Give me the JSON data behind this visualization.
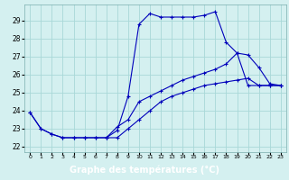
{
  "title": "Graphe des températures (°C)",
  "background_color": "#d4f0f0",
  "grid_color": "#a8d8d8",
  "line_color": "#0000bb",
  "xlabel_bg": "#0000aa",
  "xlim": [
    -0.5,
    23.5
  ],
  "ylim": [
    21.7,
    29.9
  ],
  "yticks": [
    22,
    23,
    24,
    25,
    26,
    27,
    28,
    29
  ],
  "xticks": [
    0,
    1,
    2,
    3,
    4,
    5,
    6,
    7,
    8,
    9,
    10,
    11,
    12,
    13,
    14,
    15,
    16,
    17,
    18,
    19,
    20,
    21,
    22,
    23
  ],
  "curve1_x": [
    0,
    1,
    2,
    3,
    4,
    5,
    6,
    7,
    8,
    9,
    10,
    11,
    12,
    13,
    14,
    15,
    16,
    17,
    18,
    19,
    20,
    21,
    22,
    23
  ],
  "curve1_y": [
    23.9,
    23.0,
    22.7,
    22.5,
    22.5,
    22.5,
    22.5,
    22.5,
    22.5,
    23.0,
    23.5,
    24.0,
    24.5,
    24.8,
    25.0,
    25.2,
    25.4,
    25.5,
    25.6,
    25.7,
    25.8,
    25.4,
    25.4,
    25.4
  ],
  "curve2_x": [
    0,
    1,
    2,
    3,
    4,
    5,
    6,
    7,
    8,
    9,
    10,
    11,
    12,
    13,
    14,
    15,
    16,
    17,
    18,
    19,
    20,
    21,
    22,
    23
  ],
  "curve2_y": [
    23.9,
    23.0,
    22.7,
    22.5,
    22.5,
    22.5,
    22.5,
    22.5,
    22.9,
    24.8,
    28.8,
    29.4,
    29.2,
    29.2,
    29.2,
    29.2,
    29.3,
    29.5,
    27.8,
    27.2,
    25.4,
    25.4,
    25.4,
    25.4
  ],
  "curve3_x": [
    7,
    8,
    9,
    10,
    11,
    12,
    13,
    14,
    15,
    16,
    17,
    18,
    19,
    20,
    21,
    22,
    23
  ],
  "curve3_y": [
    22.5,
    23.1,
    23.5,
    24.5,
    24.8,
    25.1,
    25.4,
    25.7,
    25.9,
    26.1,
    26.3,
    26.6,
    27.2,
    27.1,
    26.4,
    25.5,
    25.4
  ]
}
